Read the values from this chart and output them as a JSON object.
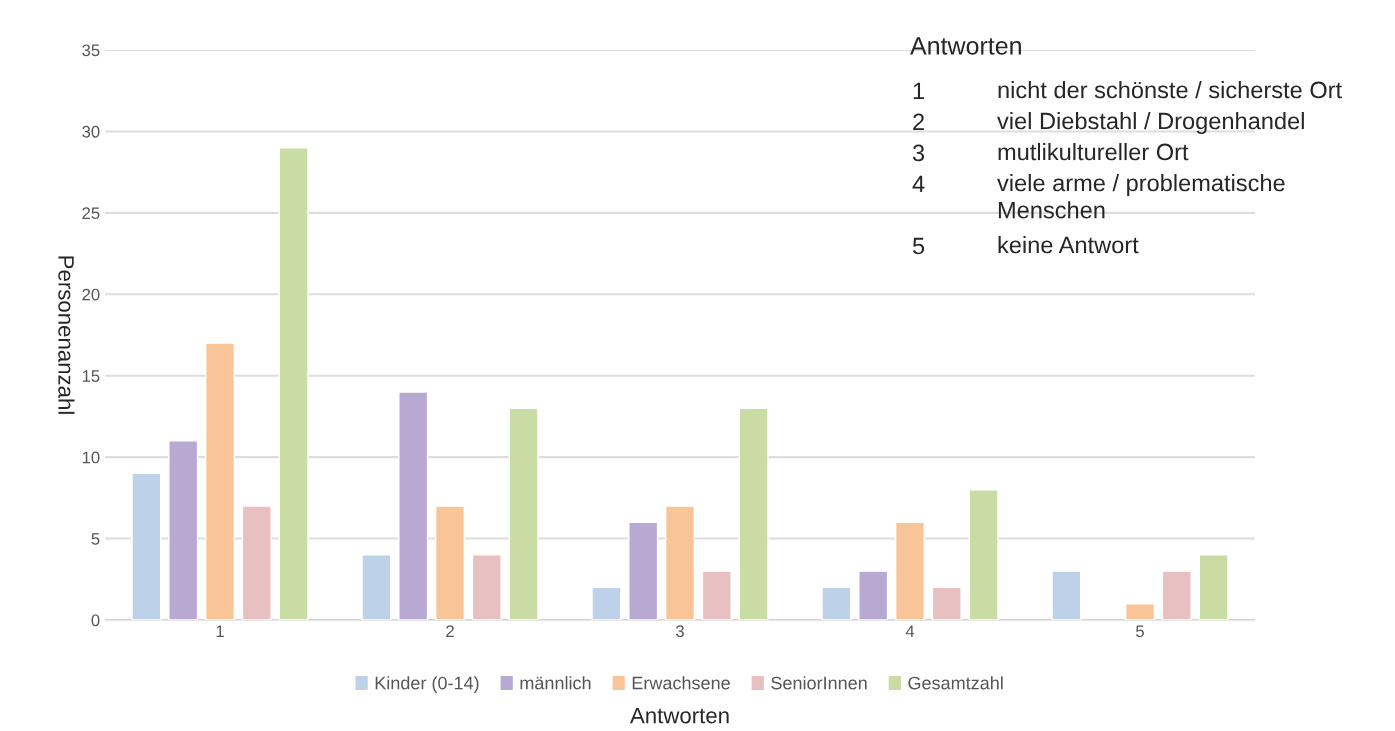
{
  "chart_data": {
    "type": "bar",
    "xlabel": "Antworten",
    "ylabel": "Personenanzahl",
    "categories": [
      "1",
      "2",
      "3",
      "4",
      "5"
    ],
    "series": [
      {
        "name": "Kinder (0-14)",
        "color": "#bdd1e8",
        "values": [
          9,
          4,
          2,
          2,
          3
        ]
      },
      {
        "name": "männlich",
        "color": "#b8a9d2",
        "values": [
          11,
          14,
          6,
          3,
          null
        ]
      },
      {
        "name": "Erwachsene",
        "color": "#f9c598",
        "values": [
          17,
          7,
          7,
          6,
          1
        ]
      },
      {
        "name": "SeniorInnen",
        "color": "#e8c0c2",
        "values": [
          7,
          4,
          3,
          2,
          3
        ]
      },
      {
        "name": "Gesamtzahl",
        "color": "#c9dca4",
        "values": [
          29,
          13,
          13,
          8,
          4
        ]
      }
    ],
    "ylim": [
      0,
      35
    ],
    "yticks": [
      0,
      5,
      10,
      15,
      20,
      25,
      30,
      35
    ],
    "grid": "y",
    "legend": "bottom",
    "annotations": [
      "Antworten",
      "1 nicht der schönste / sicherste Ort",
      "2 viel Diebstahl / Drogenhandel",
      "3 mutlikultureller Ort",
      "4 viele arme / problematische\nMenschen",
      "5 keine Antwort"
    ]
  }
}
